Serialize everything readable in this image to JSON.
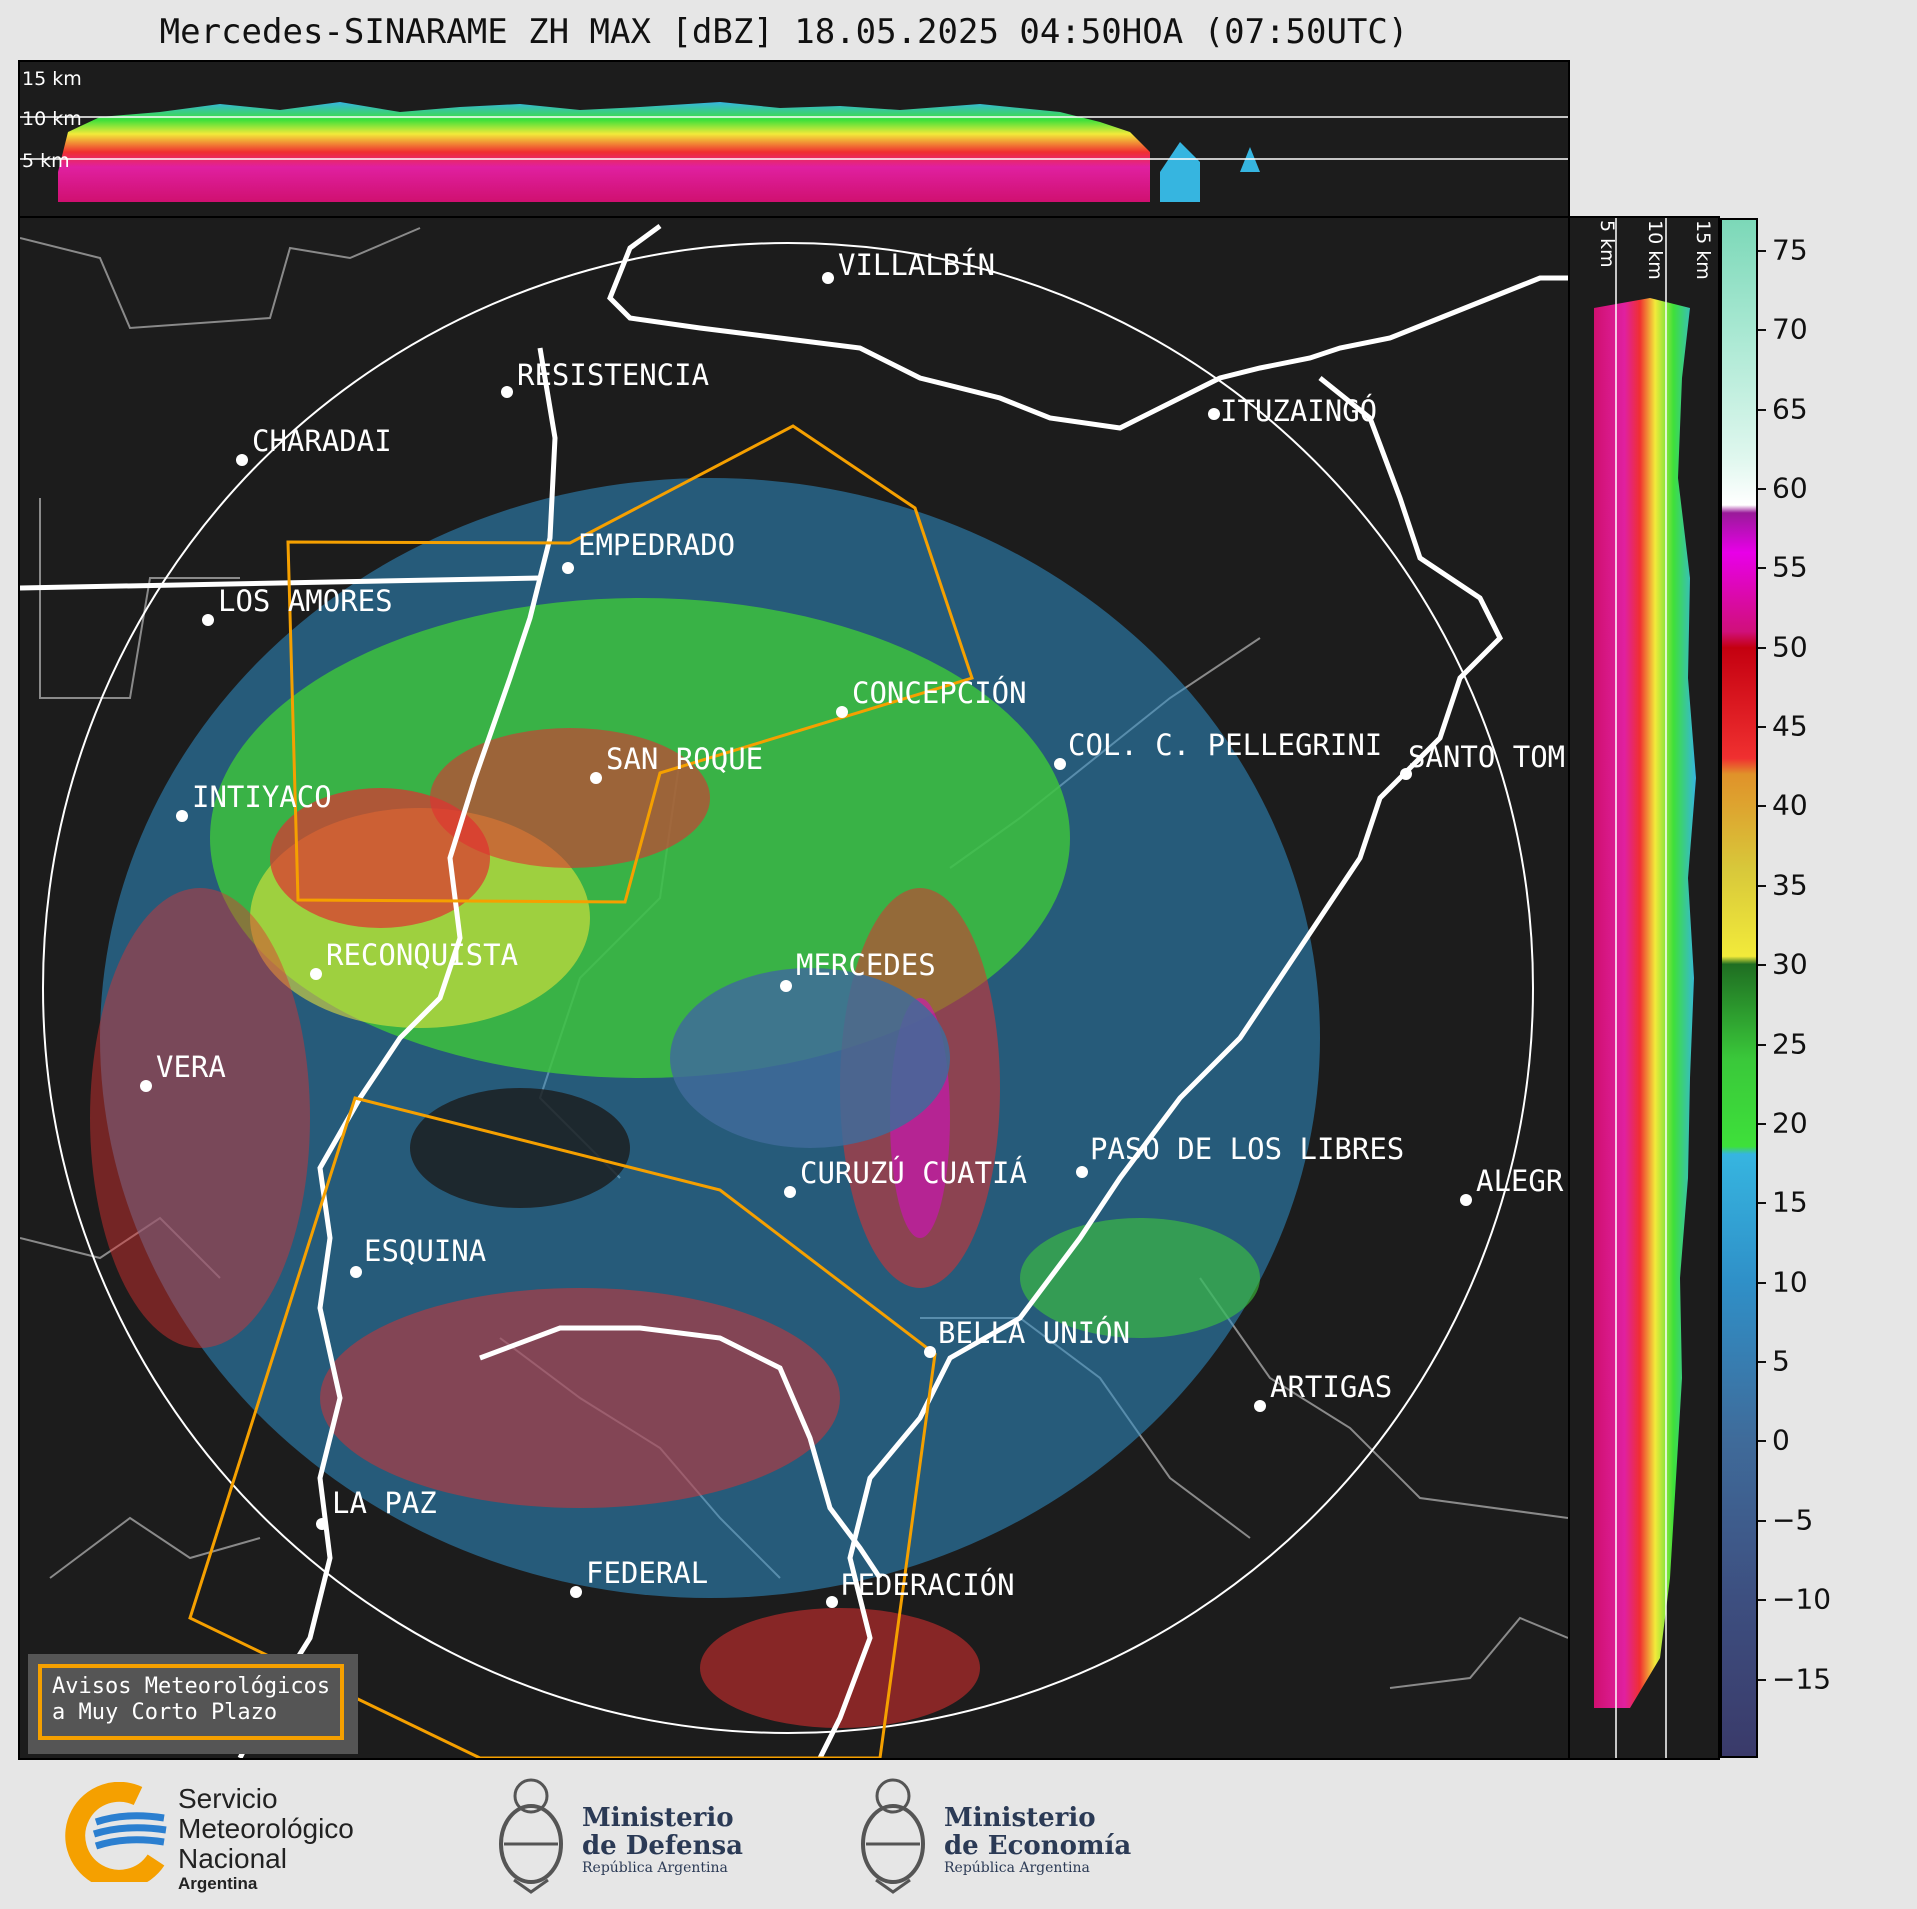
{
  "title": "Mercedes-SINARAME ZH MAX [dBZ] 18.05.2025 04:50HOA (07:50UTC)",
  "top_panel": {
    "height_labels": [
      "15 km",
      "10 km",
      "5 km"
    ]
  },
  "side_panel": {
    "height_labels": [
      "5 km",
      "10 km",
      "15 km"
    ]
  },
  "colorbar": {
    "unit": "dBZ",
    "ticks": [
      "75",
      "70",
      "65",
      "60",
      "55",
      "50",
      "45",
      "40",
      "35",
      "30",
      "25",
      "20",
      "15",
      "10",
      "5",
      "0",
      "−5",
      "−10",
      "−15"
    ],
    "tick_values": [
      75,
      70,
      65,
      60,
      55,
      50,
      45,
      40,
      35,
      30,
      25,
      20,
      15,
      10,
      5,
      0,
      -5,
      -10,
      -15
    ],
    "range": [
      -20,
      77
    ],
    "stops": [
      {
        "v": -20,
        "c": "#3a3a6a"
      },
      {
        "v": -10,
        "c": "#3d4f80"
      },
      {
        "v": 0,
        "c": "#3f6b9a"
      },
      {
        "v": 10,
        "c": "#2f90c8"
      },
      {
        "v": 18,
        "c": "#36b5e0"
      },
      {
        "v": 18.5,
        "c": "#3ee03a"
      },
      {
        "v": 24,
        "c": "#3ac83a"
      },
      {
        "v": 30,
        "c": "#1f6e22"
      },
      {
        "v": 30.5,
        "c": "#f2ea3a"
      },
      {
        "v": 36,
        "c": "#d8c83a"
      },
      {
        "v": 42,
        "c": "#e0922a"
      },
      {
        "v": 43,
        "c": "#f03030"
      },
      {
        "v": 50,
        "c": "#c40010"
      },
      {
        "v": 51,
        "c": "#d0107a"
      },
      {
        "v": 56,
        "c": "#e800e8"
      },
      {
        "v": 58.5,
        "c": "#9a1a9a"
      },
      {
        "v": 59,
        "c": "#ffffff"
      },
      {
        "v": 62,
        "c": "#dff7ee"
      },
      {
        "v": 70,
        "c": "#a8e8d2"
      },
      {
        "v": 77,
        "c": "#7cd8b8"
      }
    ]
  },
  "cities": [
    {
      "name": "VILLALBÍN"
    },
    {
      "name": "RESISTENCIA"
    },
    {
      "name": "CHARADAI"
    },
    {
      "name": "ITUZAINGÓ"
    },
    {
      "name": "EMPEDRADO"
    },
    {
      "name": "LOS AMORES"
    },
    {
      "name": "CONCEPCIÓN"
    },
    {
      "name": "COL. C. PELLEGRINI"
    },
    {
      "name": "SANTO TOM"
    },
    {
      "name": "SAN ROQUE"
    },
    {
      "name": "INTIYACO"
    },
    {
      "name": "RECONQUISTA"
    },
    {
      "name": "MERCEDES"
    },
    {
      "name": "VERA"
    },
    {
      "name": "PASO DE LOS LIBRES"
    },
    {
      "name": "CURUZÚ CUATIÁ"
    },
    {
      "name": "ALEGR"
    },
    {
      "name": "ESQUINA"
    },
    {
      "name": "BELLA UNIÓN"
    },
    {
      "name": "ARTIGAS"
    },
    {
      "name": "LA PAZ"
    },
    {
      "name": "FEDERAL"
    },
    {
      "name": "FEDERACIÓN"
    }
  ],
  "legend": {
    "line1": "Avisos Meteorológicos",
    "line2": "a Muy Corto Plazo",
    "color": "#f5a000"
  },
  "logos": {
    "smn": {
      "line1": "Servicio",
      "line2": "Meteorológico",
      "line3": "Nacional",
      "sub": "Argentina"
    },
    "defensa": {
      "line1": "Ministerio",
      "line2": "de Defensa",
      "sub": "República Argentina"
    },
    "economia": {
      "line1": "Ministerio",
      "line2": "de Economía",
      "sub": "República Argentina"
    }
  }
}
